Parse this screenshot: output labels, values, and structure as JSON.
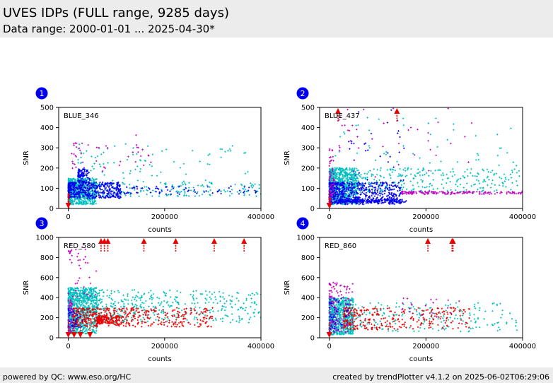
{
  "header": {
    "title": "UVES IDPs (FULL range, 9285 days)",
    "subtitle": "Data range: 2000-01-01 ... 2025-04-30*"
  },
  "footer": {
    "left": "powered by QC: www.eso.org/HC",
    "right": "created by trendPlotter v4.1.2 on 2025-06-02T06:29:06"
  },
  "colors": {
    "cyan": "#00bfbf",
    "blue": "#0000ee",
    "magenta": "#bf00bf",
    "red": "#ee0000",
    "badge": "#0000ee"
  },
  "chart_data": [
    {
      "type": "scatter",
      "badge": "1",
      "label": "BLUE_346",
      "xlabel": "counts",
      "ylabel": "SNR",
      "xlim": [
        -20000,
        400000
      ],
      "ylim": [
        0,
        500
      ],
      "xticks": [
        0,
        200000,
        400000
      ],
      "yticks": [
        0,
        100,
        200,
        300,
        400,
        500
      ],
      "series": [
        {
          "color": "cyan",
          "clusters": [
            {
              "x": [
                0,
                60000
              ],
              "y": [
                20,
                150
              ],
              "n": 650
            },
            {
              "x": [
                5000,
                400000
              ],
              "y": [
                60,
                130
              ],
              "n": 220
            },
            {
              "x": [
                20000,
                380000
              ],
              "y": [
                130,
                320
              ],
              "n": 90
            }
          ]
        },
        {
          "color": "blue",
          "clusters": [
            {
              "x": [
                0,
                110000
              ],
              "y": [
                50,
                130
              ],
              "n": 420
            },
            {
              "x": [
                20000,
                45000
              ],
              "y": [
                130,
                195
              ],
              "n": 90
            },
            {
              "x": [
                100000,
                400000
              ],
              "y": [
                70,
                110
              ],
              "n": 80
            }
          ]
        },
        {
          "color": "magenta",
          "clusters": [
            {
              "x": [
                5000,
                180000
              ],
              "y": [
                180,
                330
              ],
              "n": 40
            },
            {
              "x": [
                140000,
                200000
              ],
              "y": [
                260,
                370
              ],
              "n": 5
            }
          ]
        },
        {
          "color": "red",
          "clusters": [
            {
              "x": [
                0,
                3000
              ],
              "y": [
                0,
                70
              ],
              "n": 12
            }
          ]
        }
      ],
      "arrows": [],
      "low_arrows": [
        0
      ]
    },
    {
      "type": "scatter",
      "badge": "2",
      "label": "BLUE_437",
      "xlabel": "counts",
      "ylabel": "SNR",
      "xlim": [
        -20000,
        400000
      ],
      "ylim": [
        0,
        500
      ],
      "xticks": [
        0,
        200000,
        400000
      ],
      "yticks": [
        0,
        100,
        200,
        300,
        400,
        500
      ],
      "series": [
        {
          "color": "cyan",
          "clusters": [
            {
              "x": [
                0,
                60000
              ],
              "y": [
                20,
                200
              ],
              "n": 700
            },
            {
              "x": [
                20000,
                400000
              ],
              "y": [
                80,
                200
              ],
              "n": 350
            },
            {
              "x": [
                10000,
                390000
              ],
              "y": [
                200,
                450
              ],
              "n": 50
            }
          ]
        },
        {
          "color": "blue",
          "clusters": [
            {
              "x": [
                0,
                150000
              ],
              "y": [
                20,
                130
              ],
              "n": 600
            },
            {
              "x": [
                20000,
                160000
              ],
              "y": [
                30,
                45
              ],
              "n": 200
            },
            {
              "x": [
                40000,
                160000
              ],
              "y": [
                130,
                490
              ],
              "n": 30
            }
          ]
        },
        {
          "color": "magenta",
          "clusters": [
            {
              "x": [
                0,
                10000
              ],
              "y": [
                20,
                300
              ],
              "n": 60
            },
            {
              "x": [
                150000,
                400000
              ],
              "y": [
                70,
                85
              ],
              "n": 160
            },
            {
              "x": [
                20000,
                320000
              ],
              "y": [
                150,
                500
              ],
              "n": 40
            }
          ]
        },
        {
          "color": "red",
          "clusters": [
            {
              "x": [
                0,
                3000
              ],
              "y": [
                0,
                50
              ],
              "n": 8
            }
          ]
        }
      ],
      "arrows": [
        18000,
        140000
      ],
      "low_arrows": [
        0
      ]
    },
    {
      "type": "scatter",
      "badge": "3",
      "label": "RED_580",
      "xlabel": "counts",
      "ylabel": "SNR",
      "xlim": [
        -20000,
        400000
      ],
      "ylim": [
        0,
        1000
      ],
      "xticks": [
        0,
        200000,
        400000
      ],
      "yticks": [
        0,
        200,
        400,
        600,
        800,
        1000
      ],
      "series": [
        {
          "color": "cyan",
          "clusters": [
            {
              "x": [
                0,
                60000
              ],
              "y": [
                40,
                500
              ],
              "n": 800
            },
            {
              "x": [
                30000,
                400000
              ],
              "y": [
                150,
                480
              ],
              "n": 500
            }
          ]
        },
        {
          "color": "red",
          "clusters": [
            {
              "x": [
                10000,
                300000
              ],
              "y": [
                110,
                300
              ],
              "n": 450
            },
            {
              "x": [
                60000,
                110000
              ],
              "y": [
                140,
                220
              ],
              "n": 150
            }
          ]
        },
        {
          "color": "magenta",
          "clusters": [
            {
              "x": [
                0,
                60000
              ],
              "y": [
                400,
                950
              ],
              "n": 40
            },
            {
              "x": [
                0,
                10000
              ],
              "y": [
                50,
                380
              ],
              "n": 60
            }
          ]
        },
        {
          "color": "blue",
          "clusters": [
            {
              "x": [
                0,
                30000
              ],
              "y": [
                100,
                300
              ],
              "n": 40
            }
          ]
        }
      ],
      "arrows": [
        68000,
        75000,
        82000,
        157000,
        223000,
        303000,
        365000
      ],
      "low_arrows": [
        0,
        12000,
        25000,
        45000
      ]
    },
    {
      "type": "scatter",
      "badge": "4",
      "label": "RED_860",
      "xlabel": "counts",
      "ylabel": "SNR",
      "xlim": [
        -20000,
        400000
      ],
      "ylim": [
        0,
        1000
      ],
      "xticks": [
        0,
        200000,
        400000
      ],
      "yticks": [
        0,
        200,
        400,
        600,
        800,
        1000
      ],
      "series": [
        {
          "color": "cyan",
          "clusters": [
            {
              "x": [
                0,
                50000
              ],
              "y": [
                30,
                400
              ],
              "n": 700
            },
            {
              "x": [
                40000,
                390000
              ],
              "y": [
                60,
                350
              ],
              "n": 220
            }
          ]
        },
        {
          "color": "red",
          "clusters": [
            {
              "x": [
                30000,
                290000
              ],
              "y": [
                80,
                300
              ],
              "n": 300
            }
          ]
        },
        {
          "color": "magenta",
          "clusters": [
            {
              "x": [
                0,
                50000
              ],
              "y": [
                50,
                550
              ],
              "n": 140
            },
            {
              "x": [
                150000,
                300000
              ],
              "y": [
                200,
                400
              ],
              "n": 20
            }
          ]
        },
        {
          "color": "blue",
          "clusters": [
            {
              "x": [
                0,
                40000
              ],
              "y": [
                60,
                400
              ],
              "n": 50
            }
          ]
        }
      ],
      "arrows": [
        204000,
        254000,
        256000
      ],
      "low_arrows": [
        0
      ]
    }
  ]
}
